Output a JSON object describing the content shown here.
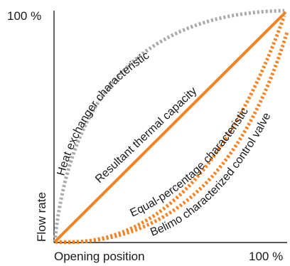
{
  "y_axis": {
    "max_label": "100 %",
    "label": "Flow rate"
  },
  "x_axis": {
    "label": "Opening position",
    "max_label": "100 %"
  },
  "curves": {
    "heat_exchanger": {
      "label": "Heat exchanger characteristic",
      "color": "#a9a9a9",
      "style": "dotted"
    },
    "resultant": {
      "label": "Resultant thermal capacity",
      "color": "#f58220",
      "style": "solid"
    },
    "equal_percentage": {
      "label": "Equal-percentage characteristic",
      "color": "#f58220",
      "style": "dotted"
    },
    "belimo": {
      "label": "Belimo characterized control valve",
      "color": "#f58220",
      "style": "dotted"
    }
  }
}
